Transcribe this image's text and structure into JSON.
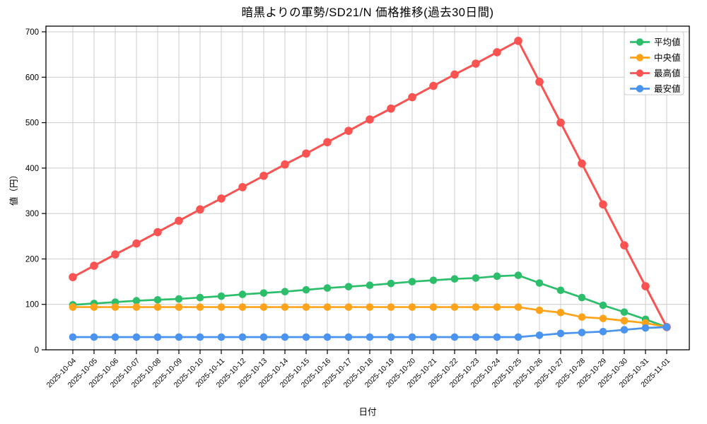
{
  "chart_data": {
    "type": "line",
    "title": "暗黒よりの軍勢/SD21/N 価格推移(過去30日間)",
    "xlabel": "日付",
    "ylabel": "値（円）",
    "ylim": [
      0,
      700
    ],
    "yticks": [
      0,
      100,
      200,
      300,
      400,
      500,
      600,
      700
    ],
    "grid": true,
    "legend_position": "upper right",
    "colors": {
      "grid": "#cccccc",
      "axis": "#000000",
      "background": "#ffffff",
      "legend_border": "#cccccc"
    },
    "categories": [
      "2025-10-04",
      "2025-10-05",
      "2025-10-06",
      "2025-10-07",
      "2025-10-08",
      "2025-10-09",
      "2025-10-10",
      "2025-10-11",
      "2025-10-12",
      "2025-10-13",
      "2025-10-14",
      "2025-10-15",
      "2025-10-16",
      "2025-10-17",
      "2025-10-18",
      "2025-10-19",
      "2025-10-20",
      "2025-10-21",
      "2025-10-22",
      "2025-10-23",
      "2025-10-24",
      "2025-10-25",
      "2025-10-26",
      "2025-10-27",
      "2025-10-28",
      "2025-10-29",
      "2025-10-30",
      "2025-10-31",
      "2025-11-01"
    ],
    "series": [
      {
        "name": "平均値",
        "key": "average",
        "color": "#2dbe6c",
        "values": [
          99,
          102,
          105,
          108,
          110,
          112,
          115,
          118,
          122,
          125,
          128,
          132,
          136,
          139,
          142,
          146,
          150,
          153,
          156,
          158,
          162,
          164,
          147,
          131,
          115,
          98,
          83,
          67,
          50
        ]
      },
      {
        "name": "中央値",
        "key": "median",
        "color": "#ffa31a",
        "values": [
          94,
          94,
          94,
          94,
          94,
          94,
          94,
          94,
          94,
          94,
          94,
          94,
          94,
          94,
          94,
          94,
          94,
          94,
          94,
          94,
          94,
          94,
          87,
          82,
          72,
          69,
          64,
          59,
          50
        ]
      },
      {
        "name": "最高値",
        "key": "max",
        "color": "#fa5352",
        "values": [
          160,
          185,
          210,
          234,
          259,
          284,
          309,
          333,
          358,
          383,
          408,
          432,
          457,
          482,
          507,
          531,
          556,
          581,
          606,
          630,
          655,
          680,
          590,
          500,
          410,
          320,
          230,
          140,
          50
        ]
      },
      {
        "name": "最安値",
        "key": "min",
        "color": "#4a94f0",
        "values": [
          28,
          28,
          28,
          28,
          28,
          28,
          28,
          28,
          28,
          28,
          28,
          28,
          28,
          28,
          28,
          28,
          28,
          28,
          28,
          28,
          28,
          28,
          32,
          36,
          38,
          40,
          44,
          48,
          50
        ]
      }
    ]
  }
}
